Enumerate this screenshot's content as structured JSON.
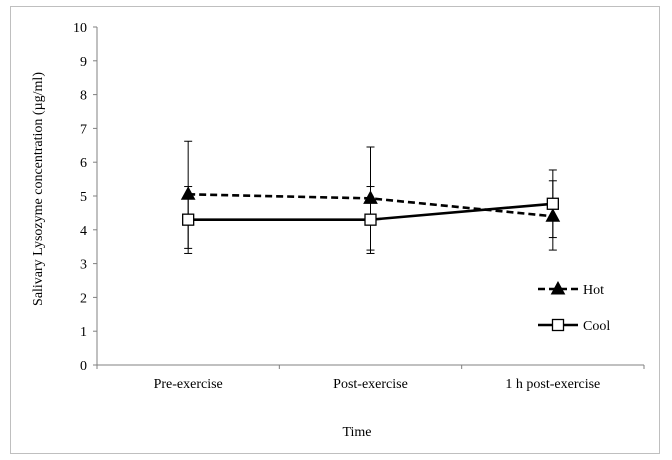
{
  "chart_data": {
    "type": "line",
    "title": "",
    "xlabel": "Time",
    "ylabel": "Salivary Lysozyme concentration (µg/ml)",
    "categories": [
      "Pre-exercise",
      "Post-exercise",
      "1 h post-exercise"
    ],
    "ylim": [
      0,
      10
    ],
    "yticks": [
      "0",
      "1",
      "2",
      "3",
      "4",
      "5",
      "6",
      "7",
      "8",
      "9",
      "10"
    ],
    "grid": false,
    "legend_position": "right",
    "series": [
      {
        "name": "Hot",
        "marker": "triangle",
        "line_style": "dashed",
        "color": "#000000",
        "values": [
          5.05,
          4.93,
          4.4
        ],
        "error_upper": [
          6.62,
          6.45,
          5.45
        ],
        "error_lower": [
          3.45,
          3.4,
          3.4
        ]
      },
      {
        "name": "Cool",
        "marker": "square",
        "line_style": "solid",
        "color": "#000000",
        "values": [
          4.3,
          4.3,
          4.77
        ],
        "error_upper": [
          5.28,
          5.28,
          5.77
        ],
        "error_lower": [
          3.3,
          3.3,
          3.77
        ]
      }
    ]
  }
}
